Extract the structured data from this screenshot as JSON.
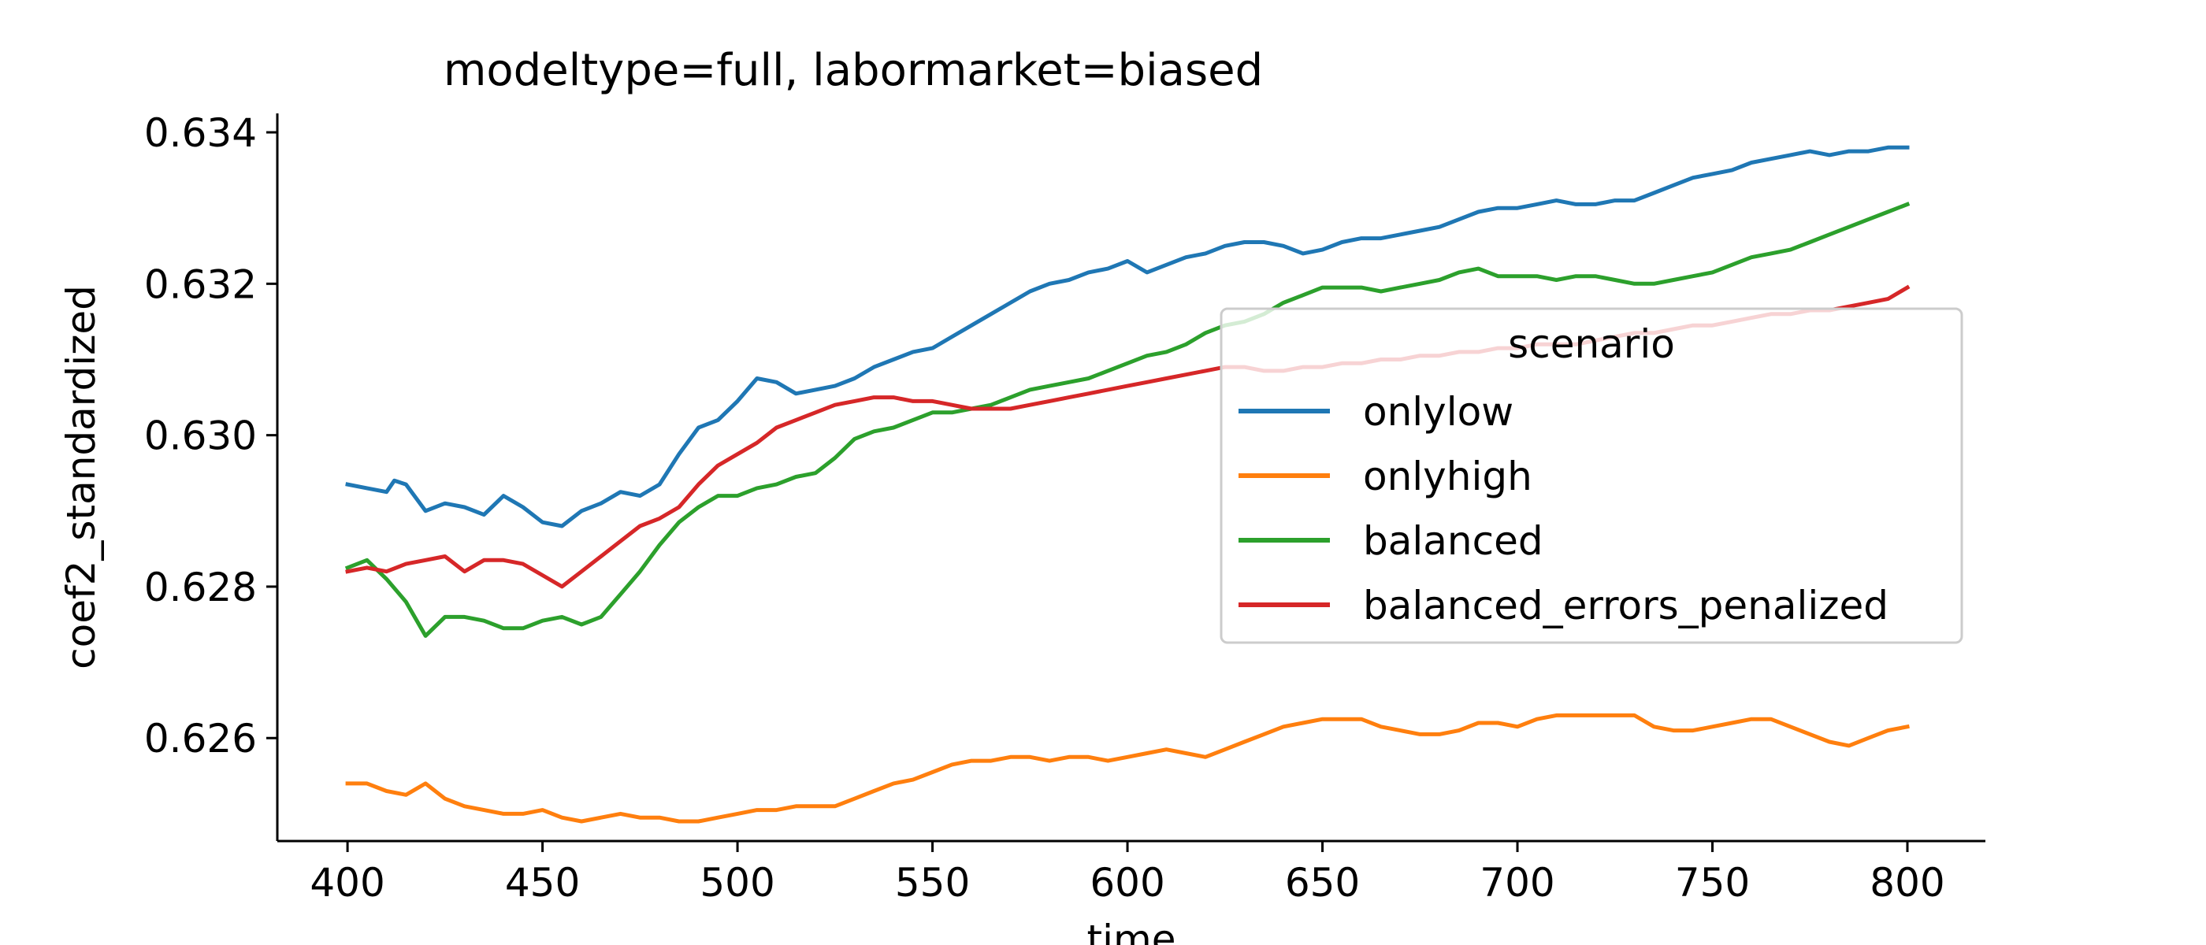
{
  "chart_data": {
    "type": "line",
    "title": "modeltype=full, labormarket=biased",
    "xlabel": "time",
    "ylabel": "coef2_standardized",
    "xlim": [
      382,
      820
    ],
    "ylim": [
      0.62464,
      0.63425
    ],
    "xticks": [
      400,
      450,
      500,
      550,
      600,
      650,
      700,
      750,
      800
    ],
    "yticks": [
      0.626,
      0.628,
      0.63,
      0.632,
      0.634
    ],
    "ytick_labels": [
      "0.626",
      "0.628",
      "0.630",
      "0.632",
      "0.634"
    ],
    "grid": false,
    "legend": {
      "title": "scenario",
      "placement": "center-right"
    },
    "series": [
      {
        "name": "onlylow",
        "color": "#1f77b4",
        "x": [
          400,
          405,
          410,
          412,
          415,
          420,
          425,
          430,
          435,
          440,
          445,
          450,
          455,
          460,
          465,
          470,
          475,
          480,
          485,
          490,
          495,
          500,
          505,
          510,
          515,
          520,
          525,
          530,
          535,
          540,
          545,
          550,
          555,
          560,
          565,
          570,
          575,
          580,
          585,
          590,
          595,
          600,
          605,
          610,
          615,
          620,
          625,
          630,
          635,
          640,
          645,
          650,
          655,
          660,
          665,
          670,
          675,
          680,
          685,
          690,
          695,
          700,
          705,
          710,
          715,
          720,
          725,
          730,
          735,
          740,
          745,
          750,
          755,
          760,
          765,
          770,
          775,
          780,
          785,
          790,
          795,
          800
        ],
        "y": [
          0.62935,
          0.6293,
          0.62925,
          0.6294,
          0.62935,
          0.629,
          0.6291,
          0.62905,
          0.62895,
          0.6292,
          0.62905,
          0.62885,
          0.6288,
          0.629,
          0.6291,
          0.62925,
          0.6292,
          0.62935,
          0.62975,
          0.6301,
          0.6302,
          0.63045,
          0.63075,
          0.6307,
          0.63055,
          0.6306,
          0.63065,
          0.63075,
          0.6309,
          0.631,
          0.6311,
          0.63115,
          0.6313,
          0.63145,
          0.6316,
          0.63175,
          0.6319,
          0.632,
          0.63205,
          0.63215,
          0.6322,
          0.6323,
          0.63215,
          0.63225,
          0.63235,
          0.6324,
          0.6325,
          0.63255,
          0.63255,
          0.6325,
          0.6324,
          0.63245,
          0.63255,
          0.6326,
          0.6326,
          0.63265,
          0.6327,
          0.63275,
          0.63285,
          0.63295,
          0.633,
          0.633,
          0.63305,
          0.6331,
          0.63305,
          0.63305,
          0.6331,
          0.6331,
          0.6332,
          0.6333,
          0.6334,
          0.63345,
          0.6335,
          0.6336,
          0.63365,
          0.6337,
          0.63375,
          0.6337,
          0.63375,
          0.63375,
          0.6338,
          0.6338
        ]
      },
      {
        "name": "onlyhigh",
        "color": "#ff7f0e",
        "x": [
          400,
          405,
          410,
          415,
          420,
          425,
          430,
          435,
          440,
          445,
          450,
          455,
          460,
          465,
          470,
          475,
          480,
          485,
          490,
          495,
          500,
          505,
          510,
          515,
          520,
          525,
          530,
          535,
          540,
          545,
          550,
          555,
          560,
          565,
          570,
          575,
          580,
          585,
          590,
          595,
          600,
          605,
          610,
          615,
          620,
          625,
          630,
          635,
          640,
          645,
          650,
          655,
          660,
          665,
          670,
          675,
          680,
          685,
          690,
          695,
          700,
          705,
          710,
          715,
          720,
          725,
          730,
          735,
          740,
          745,
          750,
          755,
          760,
          765,
          770,
          775,
          780,
          785,
          790,
          795,
          800
        ],
        "y": [
          0.6254,
          0.6254,
          0.6253,
          0.62525,
          0.6254,
          0.6252,
          0.6251,
          0.62505,
          0.625,
          0.625,
          0.62505,
          0.62495,
          0.6249,
          0.62495,
          0.625,
          0.62495,
          0.62495,
          0.6249,
          0.6249,
          0.62495,
          0.625,
          0.62505,
          0.62505,
          0.6251,
          0.6251,
          0.6251,
          0.6252,
          0.6253,
          0.6254,
          0.62545,
          0.62555,
          0.62565,
          0.6257,
          0.6257,
          0.62575,
          0.62575,
          0.6257,
          0.62575,
          0.62575,
          0.6257,
          0.62575,
          0.6258,
          0.62585,
          0.6258,
          0.62575,
          0.62585,
          0.62595,
          0.62605,
          0.62615,
          0.6262,
          0.62625,
          0.62625,
          0.62625,
          0.62615,
          0.6261,
          0.62605,
          0.62605,
          0.6261,
          0.6262,
          0.6262,
          0.62615,
          0.62625,
          0.6263,
          0.6263,
          0.6263,
          0.6263,
          0.6263,
          0.62615,
          0.6261,
          0.6261,
          0.62615,
          0.6262,
          0.62625,
          0.62625,
          0.62615,
          0.62605,
          0.62595,
          0.6259,
          0.626,
          0.6261,
          0.62615
        ]
      },
      {
        "name": "balanced",
        "color": "#2ca02c",
        "x": [
          400,
          405,
          410,
          415,
          420,
          425,
          430,
          435,
          440,
          445,
          450,
          455,
          460,
          465,
          470,
          475,
          480,
          485,
          490,
          495,
          500,
          505,
          510,
          515,
          520,
          525,
          530,
          535,
          540,
          545,
          550,
          555,
          560,
          565,
          570,
          575,
          580,
          585,
          590,
          595,
          600,
          605,
          610,
          615,
          620,
          625,
          630,
          635,
          640,
          645,
          650,
          655,
          660,
          665,
          670,
          675,
          680,
          685,
          690,
          695,
          700,
          705,
          710,
          715,
          720,
          725,
          730,
          735,
          740,
          745,
          750,
          755,
          760,
          765,
          770,
          775,
          780,
          785,
          790,
          795,
          800
        ],
        "y": [
          0.62825,
          0.62835,
          0.6281,
          0.6278,
          0.62735,
          0.6276,
          0.6276,
          0.62755,
          0.62745,
          0.62745,
          0.62755,
          0.6276,
          0.6275,
          0.6276,
          0.6279,
          0.6282,
          0.62855,
          0.62885,
          0.62905,
          0.6292,
          0.6292,
          0.6293,
          0.62935,
          0.62945,
          0.6295,
          0.6297,
          0.62995,
          0.63005,
          0.6301,
          0.6302,
          0.6303,
          0.6303,
          0.63035,
          0.6304,
          0.6305,
          0.6306,
          0.63065,
          0.6307,
          0.63075,
          0.63085,
          0.63095,
          0.63105,
          0.6311,
          0.6312,
          0.63135,
          0.63145,
          0.6315,
          0.6316,
          0.63175,
          0.63185,
          0.63195,
          0.63195,
          0.63195,
          0.6319,
          0.63195,
          0.632,
          0.63205,
          0.63215,
          0.6322,
          0.6321,
          0.6321,
          0.6321,
          0.63205,
          0.6321,
          0.6321,
          0.63205,
          0.632,
          0.632,
          0.63205,
          0.6321,
          0.63215,
          0.63225,
          0.63235,
          0.6324,
          0.63245,
          0.63255,
          0.63265,
          0.63275,
          0.63285,
          0.63295,
          0.63305
        ]
      },
      {
        "name": "balanced_errors_penalized",
        "color": "#d62728",
        "x": [
          400,
          405,
          410,
          415,
          420,
          425,
          430,
          435,
          440,
          445,
          450,
          455,
          460,
          465,
          470,
          475,
          480,
          485,
          490,
          495,
          500,
          505,
          510,
          515,
          520,
          525,
          530,
          535,
          540,
          545,
          550,
          555,
          560,
          565,
          570,
          575,
          580,
          585,
          590,
          595,
          600,
          605,
          610,
          615,
          620,
          625,
          630,
          635,
          640,
          645,
          650,
          655,
          660,
          665,
          670,
          675,
          680,
          685,
          690,
          695,
          700,
          705,
          710,
          715,
          720,
          725,
          730,
          735,
          740,
          745,
          750,
          755,
          760,
          765,
          770,
          775,
          780,
          785,
          790,
          795,
          800
        ],
        "y": [
          0.6282,
          0.62825,
          0.6282,
          0.6283,
          0.62835,
          0.6284,
          0.6282,
          0.62835,
          0.62835,
          0.6283,
          0.62815,
          0.628,
          0.6282,
          0.6284,
          0.6286,
          0.6288,
          0.6289,
          0.62905,
          0.62935,
          0.6296,
          0.62975,
          0.6299,
          0.6301,
          0.6302,
          0.6303,
          0.6304,
          0.63045,
          0.6305,
          0.6305,
          0.63045,
          0.63045,
          0.6304,
          0.63035,
          0.63035,
          0.63035,
          0.6304,
          0.63045,
          0.6305,
          0.63055,
          0.6306,
          0.63065,
          0.6307,
          0.63075,
          0.6308,
          0.63085,
          0.6309,
          0.6309,
          0.63085,
          0.63085,
          0.6309,
          0.6309,
          0.63095,
          0.63095,
          0.631,
          0.631,
          0.63105,
          0.63105,
          0.6311,
          0.6311,
          0.63115,
          0.63115,
          0.6312,
          0.6312,
          0.6312,
          0.63125,
          0.6313,
          0.63135,
          0.63135,
          0.6314,
          0.63145,
          0.63145,
          0.6315,
          0.63155,
          0.6316,
          0.6316,
          0.63165,
          0.63165,
          0.6317,
          0.63175,
          0.6318,
          0.63195
        ]
      }
    ]
  }
}
